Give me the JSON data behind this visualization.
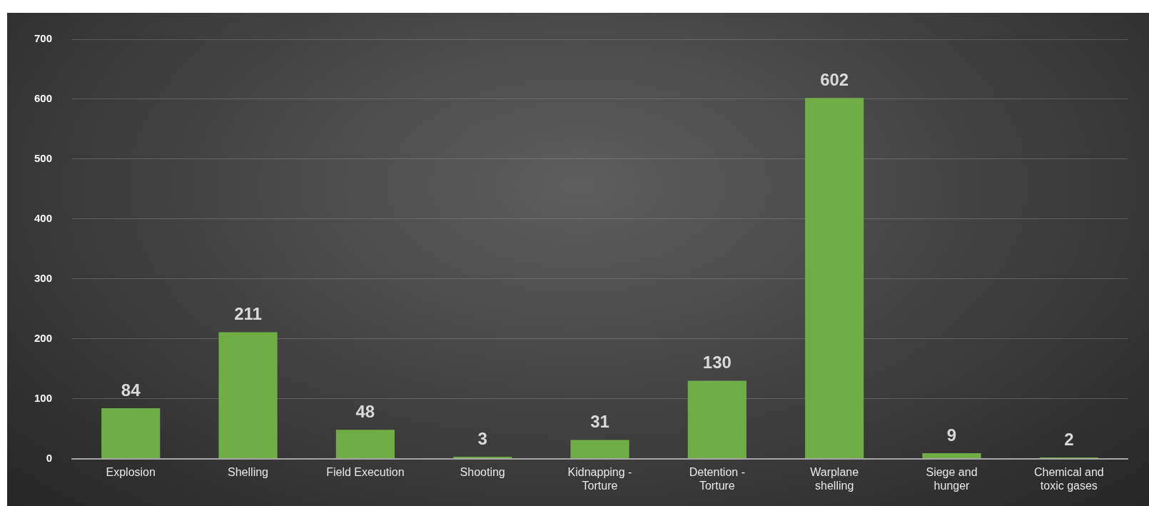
{
  "chart_data": {
    "type": "bar",
    "categories": [
      "Explosion",
      "Shelling",
      "Field Execution",
      "Shooting",
      "Kidnapping - Torture",
      "Detention - Torture",
      "Warplane shelling",
      "Siege and hunger",
      "Chemical and toxic gases"
    ],
    "values": [
      84,
      211,
      48,
      3,
      31,
      130,
      602,
      9,
      2
    ],
    "color": "#70ad47",
    "ylim": [
      0,
      700
    ],
    "yticks": [
      0,
      100,
      200,
      300,
      400,
      500,
      600,
      700
    ],
    "grid": "y",
    "legend": false,
    "data_labels": true
  }
}
